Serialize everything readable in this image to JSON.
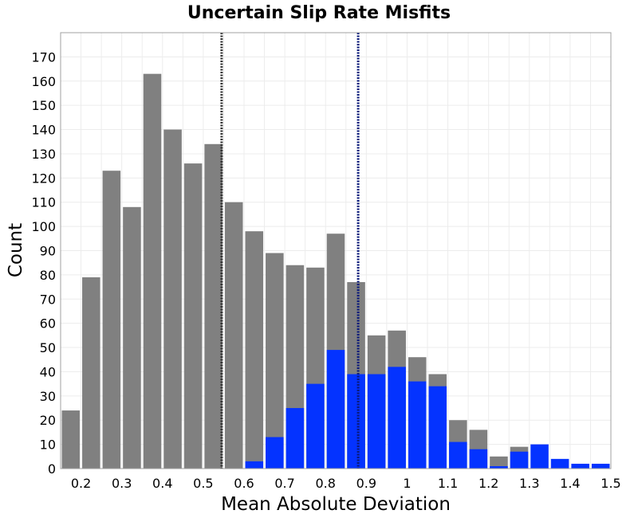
{
  "chart_data": {
    "type": "bar",
    "title": "Uncertain Slip Rate Misfits",
    "xlabel": "Mean Absolute Deviation",
    "ylabel": "Count",
    "xlim": [
      0.15,
      1.5
    ],
    "ylim": [
      0,
      180
    ],
    "grid": true,
    "bin_width": 0.05,
    "bin_centers": [
      0.175,
      0.225,
      0.275,
      0.325,
      0.375,
      0.425,
      0.475,
      0.525,
      0.575,
      0.625,
      0.675,
      0.725,
      0.775,
      0.825,
      0.875,
      0.925,
      0.975,
      1.025,
      1.075,
      1.125,
      1.175,
      1.225,
      1.275,
      1.325,
      1.375,
      1.425,
      1.475
    ],
    "x_ticks": [
      {
        "value": 0.2,
        "label": "0.2"
      },
      {
        "value": 0.3,
        "label": "0.3"
      },
      {
        "value": 0.4,
        "label": "0.4"
      },
      {
        "value": 0.5,
        "label": "0.5"
      },
      {
        "value": 0.6,
        "label": "0.6"
      },
      {
        "value": 0.7,
        "label": "0.7"
      },
      {
        "value": 0.8,
        "label": "0.8"
      },
      {
        "value": 0.9,
        "label": "0.9"
      },
      {
        "value": 1.0,
        "label": "1"
      },
      {
        "value": 1.1,
        "label": "1.1"
      },
      {
        "value": 1.2,
        "label": "1.2"
      },
      {
        "value": 1.3,
        "label": "1.3"
      },
      {
        "value": 1.4,
        "label": "1.4"
      },
      {
        "value": 1.5,
        "label": "1.5"
      }
    ],
    "y_ticks": [
      0,
      10,
      20,
      30,
      40,
      50,
      60,
      70,
      80,
      90,
      100,
      110,
      120,
      130,
      140,
      150,
      160,
      170
    ],
    "series": [
      {
        "color": "#808080",
        "values": [
          24,
          79,
          123,
          108,
          163,
          140,
          126,
          134,
          110,
          98,
          89,
          84,
          83,
          97,
          77,
          55,
          57,
          46,
          39,
          20,
          16,
          5,
          9,
          0,
          0,
          0,
          0
        ]
      },
      {
        "color": "#0433ff",
        "values": [
          0,
          0,
          0,
          0,
          0,
          0,
          0,
          0,
          0,
          3,
          13,
          25,
          35,
          49,
          39,
          39,
          42,
          36,
          34,
          11,
          8,
          1,
          7,
          10,
          4,
          2,
          2
        ]
      }
    ],
    "vlines": [
      {
        "x": 0.545,
        "color": "#333333",
        "style": "dotted"
      },
      {
        "x": 0.88,
        "color": "#0a1a7a",
        "style": "dotted"
      }
    ]
  }
}
